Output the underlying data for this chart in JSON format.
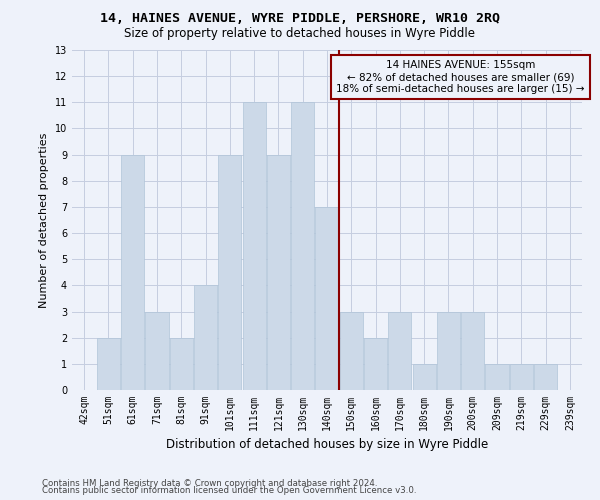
{
  "title_line1": "14, HAINES AVENUE, WYRE PIDDLE, PERSHORE, WR10 2RQ",
  "title_line2": "Size of property relative to detached houses in Wyre Piddle",
  "xlabel": "Distribution of detached houses by size in Wyre Piddle",
  "ylabel": "Number of detached properties",
  "categories": [
    "42sqm",
    "51sqm",
    "61sqm",
    "71sqm",
    "81sqm",
    "91sqm",
    "101sqm",
    "111sqm",
    "121sqm",
    "130sqm",
    "140sqm",
    "150sqm",
    "160sqm",
    "170sqm",
    "180sqm",
    "190sqm",
    "200sqm",
    "209sqm",
    "219sqm",
    "229sqm",
    "239sqm"
  ],
  "values": [
    0,
    2,
    9,
    3,
    2,
    4,
    9,
    11,
    9,
    11,
    7,
    3,
    2,
    3,
    1,
    3,
    3,
    1,
    1,
    1,
    0
  ],
  "bar_color": "#ccd9e8",
  "bar_edge_color": "#b0c4d8",
  "vline_x_index": 11,
  "vline_color": "#8b0000",
  "annotation_title": "14 HAINES AVENUE: 155sqm",
  "annotation_line2": "← 82% of detached houses are smaller (69)",
  "annotation_line3": "18% of semi-detached houses are larger (15) →",
  "annotation_box_color": "#8b0000",
  "ylim": [
    0,
    13
  ],
  "yticks": [
    0,
    1,
    2,
    3,
    4,
    5,
    6,
    7,
    8,
    9,
    10,
    11,
    12,
    13
  ],
  "footer_line1": "Contains HM Land Registry data © Crown copyright and database right 2024.",
  "footer_line2": "Contains public sector information licensed under the Open Government Licence v3.0.",
  "background_color": "#eef2fa",
  "grid_color": "#c5cde0",
  "title_fontsize": 9.5,
  "subtitle_fontsize": 8.5,
  "tick_fontsize": 7,
  "ylabel_fontsize": 8,
  "xlabel_fontsize": 8.5
}
